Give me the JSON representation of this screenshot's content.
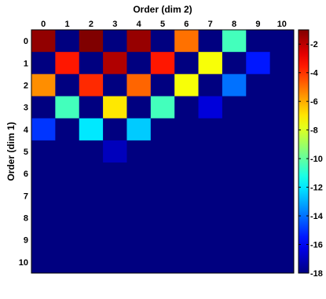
{
  "chart_data": {
    "type": "heatmap",
    "title": "",
    "xlabel": "Order (dim 2)",
    "ylabel": "Order (dim 1)",
    "x_ticks": [
      "0",
      "1",
      "2",
      "3",
      "4",
      "5",
      "6",
      "7",
      "8",
      "9",
      "10"
    ],
    "y_ticks": [
      "0",
      "1",
      "2",
      "3",
      "4",
      "5",
      "6",
      "7",
      "8",
      "9",
      "10"
    ],
    "colormap": "jet",
    "zlim": [
      -18,
      -1
    ],
    "colorbar_ticks": [
      "-2",
      "-4",
      "-6",
      "-8",
      "-10",
      "-12",
      "-14",
      "-16",
      "-18"
    ],
    "values": [
      [
        -1.3,
        -18,
        -1.0,
        -18,
        -1.4,
        -18,
        -5.0,
        -18,
        -10.5,
        -18,
        -18
      ],
      [
        -18,
        -3.5,
        -18,
        -1.8,
        -18,
        -3.5,
        -18,
        -7.5,
        -18,
        -15.5,
        -18
      ],
      [
        -5.5,
        -18,
        -3.8,
        -18,
        -4.8,
        -18,
        -7.5,
        -18,
        -14.0,
        -18,
        -18
      ],
      [
        -18,
        -10.5,
        -18,
        -7.0,
        -18,
        -10.5,
        -18,
        -16.5,
        -18,
        -18,
        -18
      ],
      [
        -15.0,
        -18,
        -12.0,
        -18,
        -12.5,
        -18,
        -18,
        -18,
        -18,
        -18,
        -18
      ],
      [
        -18,
        -18,
        -18,
        -17.0,
        -18,
        -18,
        -18,
        -18,
        -18,
        -18,
        -18
      ],
      [
        -18,
        -18,
        -18,
        -18,
        -18,
        -18,
        -18,
        -18,
        -18,
        -18,
        -18
      ],
      [
        -18,
        -18,
        -18,
        -18,
        -18,
        -18,
        -18,
        -18,
        -18,
        -18,
        -18
      ],
      [
        -18,
        -18,
        -18,
        -18,
        -18,
        -18,
        -18,
        -18,
        -18,
        -18,
        -18
      ],
      [
        -18,
        -18,
        -18,
        -18,
        -18,
        -18,
        -18,
        -18,
        -18,
        -18,
        -18
      ],
      [
        -18,
        -18,
        -18,
        -18,
        -18,
        -18,
        -18,
        -18,
        -18,
        -18,
        -18
      ]
    ]
  }
}
